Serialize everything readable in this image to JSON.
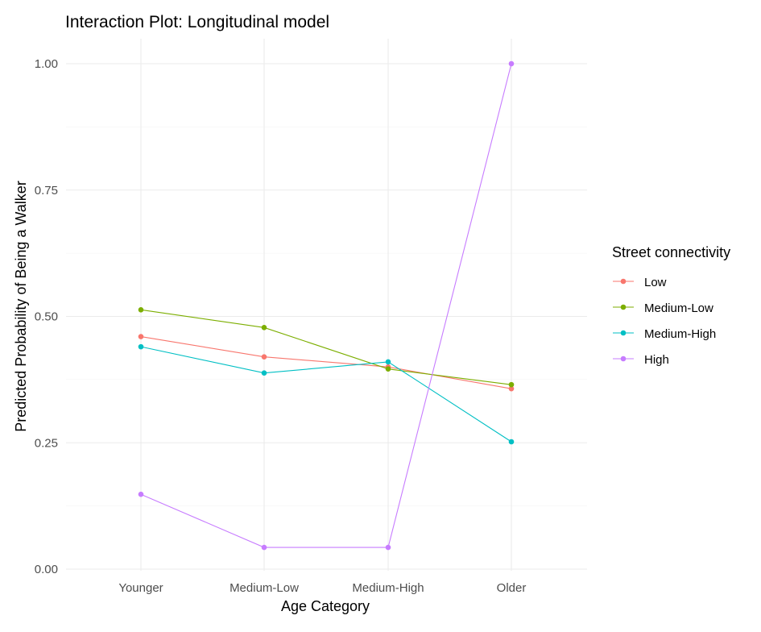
{
  "chart_data": {
    "type": "line",
    "title": "Interaction Plot: Longitudinal model",
    "xlabel": "Age Category",
    "ylabel": "Predicted Probability of Being a Walker",
    "categories": [
      "Younger",
      "Medium-Low",
      "Medium-High",
      "Older"
    ],
    "ylim": [
      0,
      1.0
    ],
    "yticks": [
      "0.00",
      "0.25",
      "0.50",
      "0.75",
      "1.00"
    ],
    "grid": true,
    "legend": {
      "title": "Street connectivity",
      "position": "right"
    },
    "series": [
      {
        "name": "Low",
        "color": "#F8766D",
        "values": [
          0.46,
          0.42,
          0.4,
          0.357
        ]
      },
      {
        "name": "Medium-Low",
        "color": "#7CAE00",
        "values": [
          0.513,
          0.478,
          0.396,
          0.365
        ]
      },
      {
        "name": "Medium-High",
        "color": "#00BFC4",
        "values": [
          0.44,
          0.388,
          0.41,
          0.252
        ]
      },
      {
        "name": "High",
        "color": "#C77CFF",
        "values": [
          0.148,
          0.043,
          0.043,
          1.0
        ]
      }
    ]
  }
}
